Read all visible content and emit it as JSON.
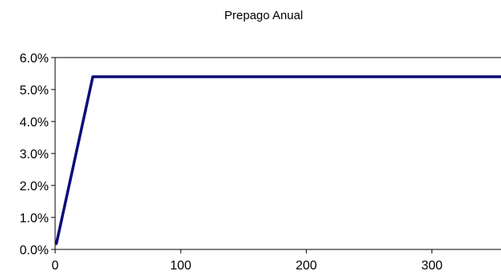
{
  "chart_data": {
    "type": "line",
    "title": "Prepago Anual",
    "xlabel": "",
    "ylabel": "",
    "xlim": [
      0,
      355
    ],
    "ylim": [
      0,
      0.06
    ],
    "x_ticks": [
      0,
      100,
      200,
      300
    ],
    "x_tick_labels": [
      "0",
      "100",
      "200",
      "300"
    ],
    "y_ticks": [
      0,
      0.01,
      0.02,
      0.03,
      0.04,
      0.05,
      0.06
    ],
    "y_tick_labels": [
      "0.0%",
      "1.0%",
      "2.0%",
      "3.0%",
      "4.0%",
      "5.0%",
      "6.0%"
    ],
    "grid": "horizontal top line only",
    "legend": "none",
    "series": [
      {
        "color": "#0a0a7a",
        "x": [
          1,
          2,
          3,
          4,
          5,
          6,
          7,
          8,
          9,
          10,
          11,
          12,
          13,
          14,
          15,
          16,
          17,
          18,
          19,
          20,
          21,
          22,
          23,
          24,
          25,
          26,
          27,
          28,
          29,
          30,
          100,
          200,
          300,
          355
        ],
        "y": [
          0.0018,
          0.0036,
          0.0054,
          0.0072,
          0.009,
          0.0108,
          0.0126,
          0.0144,
          0.0162,
          0.018,
          0.0198,
          0.0216,
          0.0234,
          0.0252,
          0.027,
          0.0288,
          0.0306,
          0.0324,
          0.0342,
          0.036,
          0.0378,
          0.0396,
          0.0414,
          0.0432,
          0.045,
          0.0468,
          0.0486,
          0.0504,
          0.0522,
          0.054,
          0.054,
          0.054,
          0.054,
          0.054
        ]
      }
    ]
  }
}
